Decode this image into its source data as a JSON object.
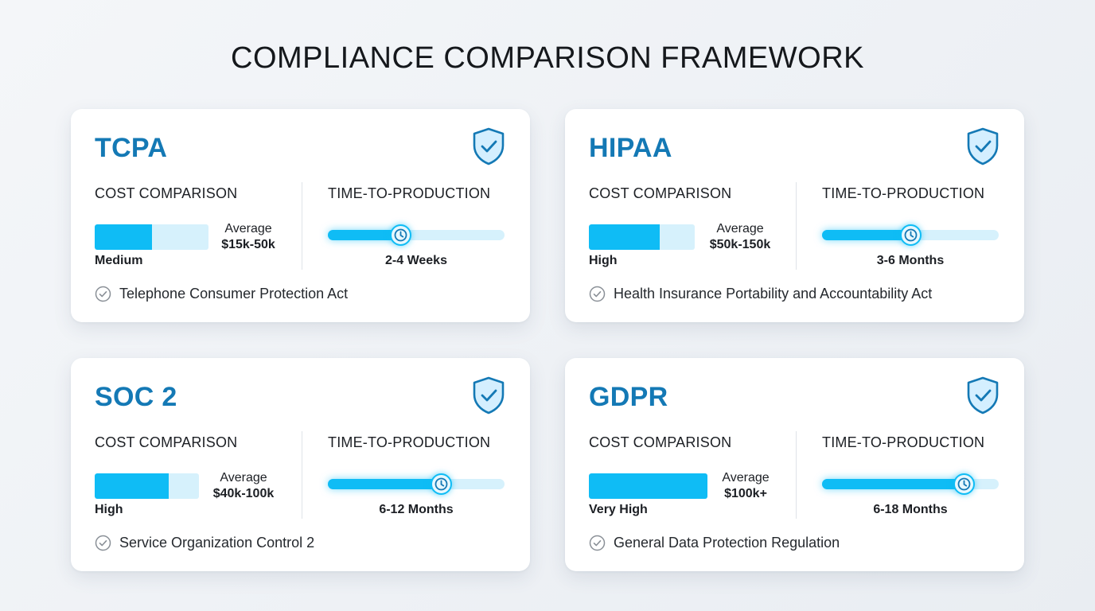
{
  "title": "COMPLIANCE COMPARISON FRAMEWORK",
  "icons": {
    "badge": "shield-check-icon",
    "time": "clock-icon",
    "description": "check-circle-icon"
  },
  "colors": {
    "accent": "#0fbcf5",
    "accent_light": "#d6f1fc",
    "title_blue": "#1479b5"
  },
  "labels": {
    "cost": "COST COMPARISON",
    "time": "TIME-TO-PRODUCTION",
    "average": "Average"
  },
  "cards": [
    {
      "name": "TCPA",
      "cost_level": "Medium",
      "cost_range": "$15k-50k",
      "cost_fill": 0.5,
      "time_value": "2-4 Weeks",
      "time_progress": 0.41,
      "description": "Telephone Consumer Protection Act"
    },
    {
      "name": "HIPAA",
      "cost_level": "High",
      "cost_range": "$50k-150k",
      "cost_fill": 0.67,
      "time_value": "3-6 Months",
      "time_progress": 0.5,
      "description": "Health Insurance Portability and Accountability Act"
    },
    {
      "name": "SOC 2",
      "cost_level": "High",
      "cost_range": "$40k-100k",
      "cost_fill": 0.71,
      "time_value": "6-12 Months",
      "time_progress": 0.64,
      "description": "Service Organization Control 2"
    },
    {
      "name": "GDPR",
      "cost_level": "Very High",
      "cost_range": "$100k+",
      "cost_fill": 1.0,
      "time_value": "6-18 Months",
      "time_progress": 0.8,
      "description": "General Data Protection Regulation"
    }
  ]
}
